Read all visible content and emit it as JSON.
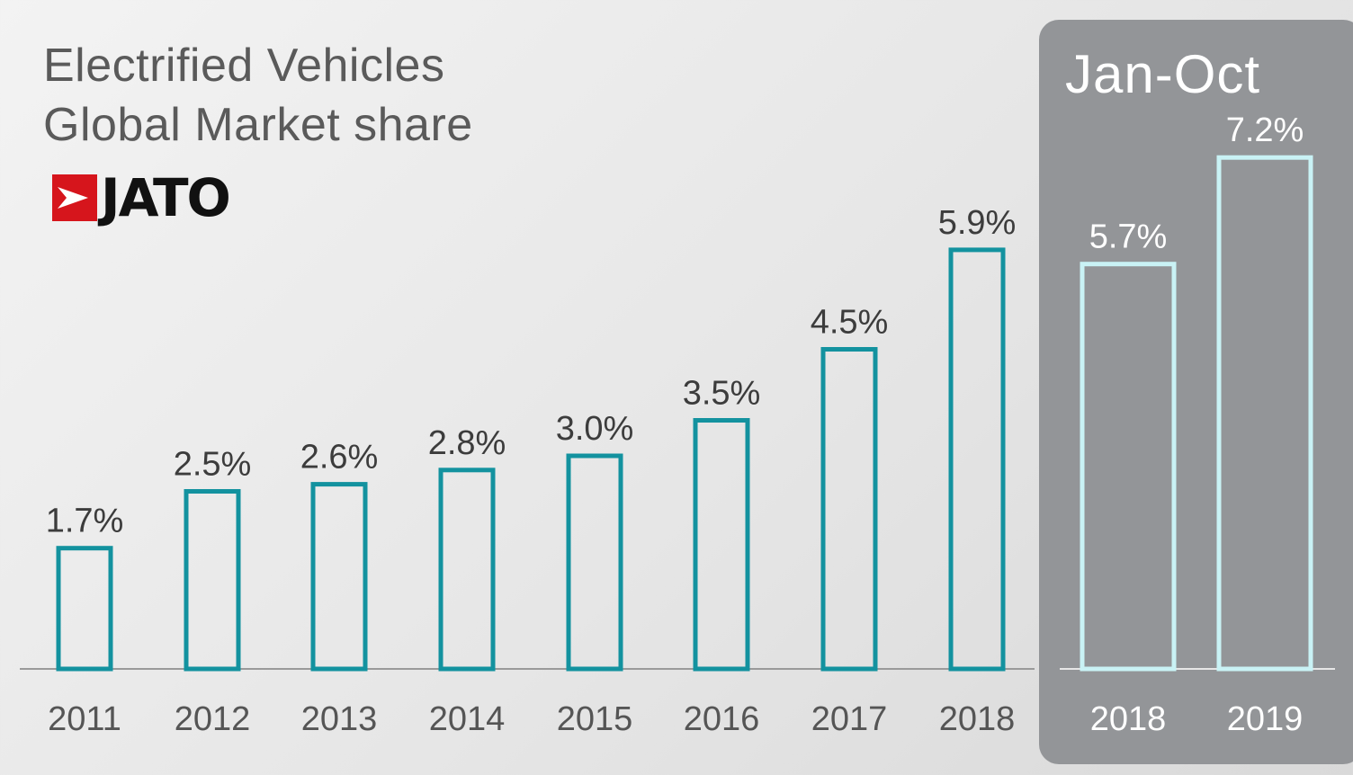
{
  "header": {
    "title_line1": "Electrified Vehicles",
    "title_line2": "Global Market share",
    "logo_text": "JATO",
    "logo_icon": "jato-arrow-flag-icon"
  },
  "panel": {
    "title": "Jan-Oct"
  },
  "colors": {
    "bar_outline": "#13929f",
    "highlight_bar_outline": "#c9f2f5",
    "panel_background": "#939598",
    "logo_red": "#d6151c",
    "label_text": "#3c3c3c"
  },
  "chart_data": [
    {
      "type": "bar",
      "categories": [
        "2011",
        "2012",
        "2013",
        "2014",
        "2015",
        "2016",
        "2017",
        "2018"
      ],
      "values": [
        1.7,
        2.5,
        2.6,
        2.8,
        3.0,
        3.5,
        4.5,
        5.9
      ],
      "data_labels": [
        "1.7%",
        "2.5%",
        "2.6%",
        "2.8%",
        "3.0%",
        "3.5%",
        "4.5%",
        "5.9%"
      ],
      "ylabel": "",
      "xlabel": "",
      "ylim": [
        0,
        8
      ],
      "grid": false
    },
    {
      "type": "bar",
      "title": "Jan-Oct",
      "categories": [
        "2018",
        "2019"
      ],
      "values": [
        5.7,
        7.2
      ],
      "data_labels": [
        "5.7%",
        "7.2%"
      ],
      "ylim": [
        0,
        8
      ],
      "grid": false
    }
  ]
}
